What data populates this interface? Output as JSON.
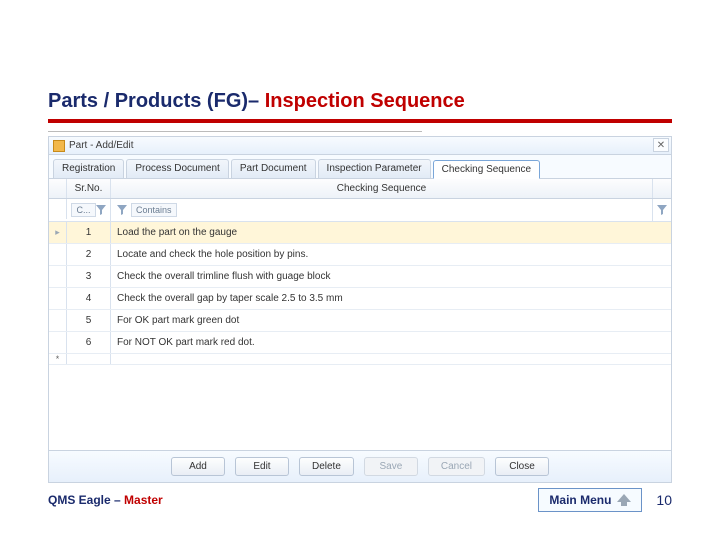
{
  "slide": {
    "title_prefix": "Parts / Products (FG)– ",
    "title_main": "Inspection Sequence"
  },
  "window": {
    "title": "Part - Add/Edit"
  },
  "tabs": [
    {
      "label": "Registration",
      "active": false
    },
    {
      "label": "Process Document",
      "active": false
    },
    {
      "label": "Part Document",
      "active": false
    },
    {
      "label": "Inspection Parameter",
      "active": false
    },
    {
      "label": "Checking Sequence",
      "active": true
    }
  ],
  "grid": {
    "columns": {
      "sr": "Sr.No.",
      "seq": "Checking Sequence"
    },
    "filter_placeholder": "Contains",
    "rows": [
      {
        "sr": "1",
        "seq": "Load the part on the gauge",
        "selected": true
      },
      {
        "sr": "2",
        "seq": "Locate and check the hole position by pins.",
        "selected": false
      },
      {
        "sr": "3",
        "seq": "Check the overall trimline flush with guage block",
        "selected": false
      },
      {
        "sr": "4",
        "seq": "Check the overall gap by taper scale 2.5 to 3.5 mm",
        "selected": false
      },
      {
        "sr": "5",
        "seq": "For OK part mark green dot",
        "selected": false
      },
      {
        "sr": "6",
        "seq": "For NOT OK part mark red dot.",
        "selected": false
      }
    ]
  },
  "buttons": {
    "add": "Add",
    "edit": "Edit",
    "delete": "Delete",
    "save": "Save",
    "cancel": "Cancel",
    "close": "Close"
  },
  "footer": {
    "brand_prefix": "QMS Eagle – ",
    "brand_suffix": "Master",
    "main_menu": "Main Menu",
    "page": "10"
  },
  "colors": {
    "accent_red": "#c00000",
    "title_navy": "#1a2a6c",
    "window_border": "#c9d3e0",
    "selected_row": "#fff6d9"
  }
}
